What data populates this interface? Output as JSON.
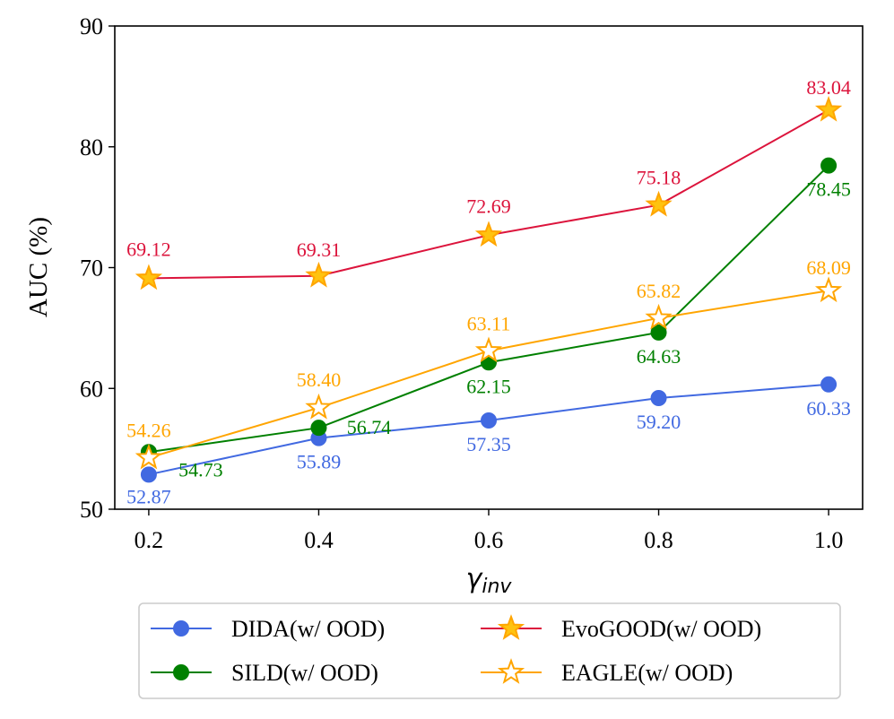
{
  "chart_data": {
    "type": "line",
    "title": "",
    "xlabel": "γinv",
    "xlabel_main": "γ",
    "xlabel_sub": "inv",
    "ylabel": "AUC (%)",
    "x": [
      0.2,
      0.4,
      0.6,
      0.8,
      1.0
    ],
    "x_tick_labels": [
      "0.2",
      "0.4",
      "0.6",
      "0.8",
      "1.0"
    ],
    "xlim": [
      0.16,
      1.04
    ],
    "ylim": [
      50,
      90
    ],
    "y_ticks": [
      50,
      60,
      70,
      80,
      90
    ],
    "y_tick_labels": [
      "50",
      "60",
      "70",
      "80",
      "90"
    ],
    "grid": false,
    "legend_position": "bottom-center",
    "series": [
      {
        "name": "DIDA(w/ OOD)",
        "color": "#4169e1",
        "marker": "circle",
        "values": [
          52.87,
          55.89,
          57.35,
          59.2,
          60.33
        ],
        "labels": [
          "52.87",
          "55.89",
          "57.35",
          "59.20",
          "60.33"
        ]
      },
      {
        "name": "SILD(w/ OOD)",
        "color": "#008000",
        "marker": "circle",
        "values": [
          54.73,
          56.74,
          62.15,
          64.63,
          78.45
        ],
        "labels": [
          "54.73",
          "56.74",
          "62.15",
          "64.63",
          "78.45"
        ]
      },
      {
        "name": "EvoGOOD(w/ OOD)",
        "color": "#dc143c",
        "marker": "star-filled",
        "marker_fill": "#ffc30f",
        "marker_edge": "#ffa500",
        "values": [
          69.12,
          69.31,
          72.69,
          75.18,
          83.04
        ],
        "labels": [
          "69.12",
          "69.31",
          "72.69",
          "75.18",
          "83.04"
        ]
      },
      {
        "name": "EAGLE(w/ OOD)",
        "color": "#ffa500",
        "marker": "star-hollow",
        "marker_fill": "#ffffff",
        "marker_edge": "#ffa500",
        "values": [
          54.26,
          58.4,
          63.11,
          65.82,
          68.09
        ],
        "labels": [
          "54.26",
          "58.40",
          "63.11",
          "65.82",
          "68.09"
        ]
      }
    ]
  }
}
